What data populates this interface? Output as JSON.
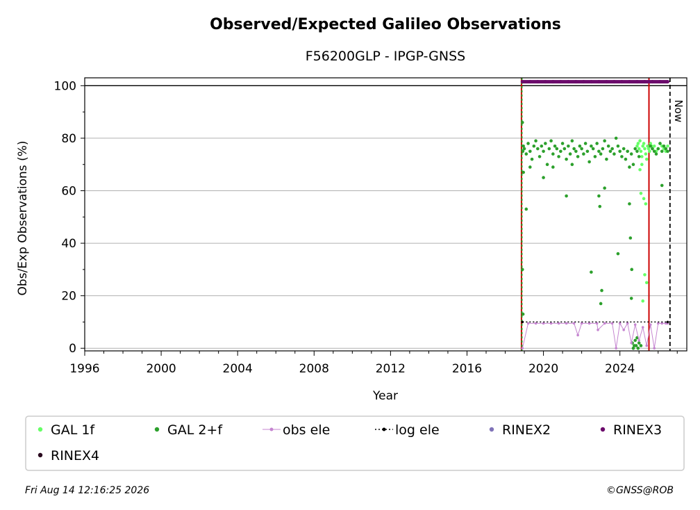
{
  "chart_data": {
    "type": "scatter",
    "title": "Observed/Expected Galileo Observations",
    "subtitle": "F56200GLP - IPGP-GNSS",
    "xlabel": "Year",
    "ylabel": "Obs/Exp Observations (%)",
    "xlim": [
      1996,
      2027.5
    ],
    "ylim": [
      -1,
      103
    ],
    "x_ticks": [
      "1996",
      "2000",
      "2004",
      "2008",
      "2012",
      "2016",
      "2020",
      "2024"
    ],
    "y_ticks": [
      "0",
      "20",
      "40",
      "60",
      "80",
      "100"
    ],
    "grid": "horizontal",
    "reference_line_y": 100,
    "now_label": "Now",
    "now_x": 2026.62,
    "vertical_lines": [
      {
        "x": 2018.85,
        "color": "#cc0000"
      },
      {
        "x": 2018.87,
        "color": "#2ca02c",
        "style": "dotted"
      },
      {
        "x": 2025.52,
        "color": "#cc0000"
      }
    ],
    "legend_placement": "bottom",
    "series": [
      {
        "name": "GAL 1f",
        "color": "#66ff66",
        "marker": "dot",
        "x": [
          2024.9,
          2024.95,
          2025.0,
          2025.05,
          2025.1,
          2025.15,
          2025.2,
          2025.25,
          2025.3,
          2025.35,
          2025.4,
          2025.45,
          2025.5,
          2025.55,
          2025.6,
          2025.65,
          2025.7,
          2025.8,
          2025.9,
          2026.0,
          2026.1,
          2026.2,
          2026.3,
          2026.4,
          2026.5,
          2025.1,
          2025.25,
          2025.35,
          2025.2,
          2025.3,
          2025.4,
          2025.15,
          2025.05
        ],
        "y": [
          77,
          78,
          76,
          79,
          75,
          73,
          77,
          78,
          76,
          74,
          72,
          77,
          76,
          75,
          78,
          77,
          76,
          77,
          75,
          76,
          78,
          77,
          76,
          75,
          77,
          59,
          57,
          55,
          18,
          28,
          25,
          70,
          68
        ]
      },
      {
        "name": "GAL 2+f",
        "color": "#2ca02c",
        "marker": "dot",
        "x": [
          2018.9,
          2018.92,
          2018.95,
          2019.0,
          2019.1,
          2019.2,
          2019.3,
          2019.4,
          2019.5,
          2019.6,
          2019.7,
          2019.8,
          2019.9,
          2020.0,
          2020.1,
          2020.2,
          2020.3,
          2020.4,
          2020.5,
          2020.6,
          2020.7,
          2020.8,
          2020.9,
          2021.0,
          2021.1,
          2021.2,
          2021.3,
          2021.4,
          2021.5,
          2021.6,
          2021.7,
          2021.8,
          2021.9,
          2022.0,
          2022.1,
          2022.2,
          2022.3,
          2022.4,
          2022.5,
          2022.6,
          2022.7,
          2022.8,
          2022.9,
          2023.0,
          2023.1,
          2023.2,
          2023.3,
          2023.4,
          2023.5,
          2023.6,
          2023.7,
          2023.8,
          2023.9,
          2024.0,
          2024.1,
          2024.2,
          2024.3,
          2024.4,
          2024.5,
          2024.6,
          2024.7,
          2024.8,
          2024.9,
          2025.0,
          2025.6,
          2025.7,
          2025.8,
          2025.9,
          2026.0,
          2026.1,
          2026.2,
          2026.3,
          2026.4,
          2026.5,
          2018.9,
          2018.95,
          2018.93,
          2019.1,
          2019.3,
          2020.0,
          2020.5,
          2021.2,
          2021.5,
          2022.5,
          2022.9,
          2022.95,
          2023.0,
          2023.05,
          2023.2,
          2023.9,
          2024.5,
          2024.55,
          2024.6,
          2024.62,
          2024.65,
          2024.7,
          2024.75,
          2024.8,
          2024.85,
          2024.9,
          2024.95,
          2025.0,
          2025.1,
          2026.2
        ],
        "y": [
          86,
          75,
          77,
          76,
          74,
          78,
          75,
          72,
          77,
          79,
          76,
          73,
          77,
          75,
          78,
          70,
          76,
          79,
          74,
          77,
          76,
          73,
          75,
          78,
          76,
          72,
          77,
          74,
          79,
          76,
          75,
          73,
          77,
          76,
          74,
          78,
          75,
          71,
          77,
          76,
          73,
          78,
          75,
          74,
          76,
          79,
          72,
          77,
          75,
          76,
          74,
          80,
          77,
          75,
          73,
          76,
          72,
          75,
          69,
          74,
          70,
          76,
          75,
          73,
          77,
          76,
          75,
          74,
          76,
          78,
          75,
          77,
          76,
          75,
          30,
          67,
          13,
          53,
          69,
          65,
          69,
          58,
          70,
          29,
          58,
          54,
          17,
          22,
          61,
          36,
          55,
          42,
          19,
          30,
          2,
          0,
          1,
          3,
          1,
          4,
          0,
          2,
          1,
          62
        ]
      },
      {
        "name": "obs ele",
        "color": "#c585d0",
        "marker": "line-dot",
        "x": [
          2018.9,
          2019.2,
          2019.6,
          2020.0,
          2020.4,
          2020.8,
          2021.2,
          2021.6,
          2021.8,
          2022.0,
          2022.4,
          2022.8,
          2022.85,
          2023.2,
          2023.6,
          2023.8,
          2024.0,
          2024.2,
          2024.4,
          2024.6,
          2024.8,
          2025.0,
          2025.2,
          2025.4,
          2025.6,
          2025.8,
          2026.0,
          2026.2,
          2026.4,
          2026.5
        ],
        "y": [
          0,
          9.5,
          9.5,
          9.5,
          9.5,
          9.5,
          9.5,
          9.5,
          5,
          9.5,
          9.5,
          9.5,
          7,
          9.5,
          9.5,
          0,
          9.5,
          7,
          9.5,
          2,
          9,
          3,
          8,
          1,
          9,
          0,
          9.5,
          9.5,
          9.5,
          9.5
        ]
      },
      {
        "name": "log ele",
        "color": "#000000",
        "marker": "dash-dot",
        "x": [
          2018.9,
          2026.5
        ],
        "y": [
          10,
          10
        ]
      },
      {
        "name": "RINEX2",
        "color": "#8073b8",
        "marker": "dot",
        "x": [],
        "y": []
      },
      {
        "name": "RINEX3",
        "color": "#6b0a6b",
        "marker": "dot",
        "x": [
          2018.9,
          2019.3,
          2019.7,
          2020.1,
          2020.5,
          2020.9,
          2021.3,
          2021.7,
          2022.1,
          2022.5,
          2022.9,
          2023.3,
          2023.7,
          2024.1,
          2024.5,
          2024.9,
          2025.3,
          2025.7,
          2026.1,
          2026.5
        ],
        "y": [
          101.5,
          101.5,
          101.5,
          101.5,
          101.5,
          101.5,
          101.5,
          101.5,
          101.5,
          101.5,
          101.5,
          101.5,
          101.5,
          101.5,
          101.5,
          101.5,
          101.5,
          101.5,
          101.5,
          101.5
        ]
      },
      {
        "name": "RINEX4",
        "color": "#2a0a1f",
        "marker": "dot",
        "x": [],
        "y": []
      }
    ]
  },
  "footer": {
    "timestamp": "Fri Aug 14 12:16:25 2026",
    "credit": "©GNSS@ROB"
  }
}
